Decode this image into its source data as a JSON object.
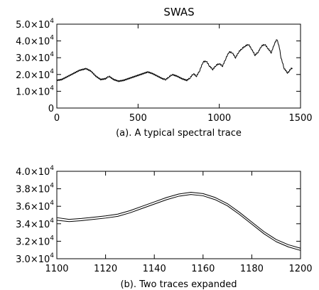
{
  "figure_title": "SWAS",
  "chart_data": [
    {
      "type": "line",
      "title": "SWAS",
      "caption": "(a). A typical spectral trace",
      "xlabel": "",
      "ylabel": "",
      "xlim": [
        0,
        1500
      ],
      "ylim": [
        0,
        50000
      ],
      "x_ticks": [
        0,
        500,
        1000,
        1500
      ],
      "x_tick_labels": [
        "0",
        "500",
        "1000",
        "1500"
      ],
      "y_ticks": [
        0,
        10000,
        20000,
        30000,
        40000,
        50000
      ],
      "y_tick_labels": [
        {
          "mantissa": "0",
          "exponent": ""
        },
        {
          "mantissa": "1.0×10",
          "exponent": "4"
        },
        {
          "mantissa": "2.0×10",
          "exponent": "4"
        },
        {
          "mantissa": "3.0×10",
          "exponent": "4"
        },
        {
          "mantissa": "4.0×10",
          "exponent": "4"
        },
        {
          "mantissa": "5.0×10",
          "exponent": "4"
        }
      ],
      "grid": false,
      "line_color": "#000000",
      "series": [
        {
          "x": [
            0,
            30,
            60,
            100,
            140,
            180,
            210,
            240,
            270,
            300,
            320,
            350,
            380,
            410,
            440,
            470,
            500,
            530,
            560,
            590,
            620,
            650,
            670,
            690,
            710,
            740,
            770,
            800,
            820,
            840,
            860,
            880,
            900,
            920,
            940,
            960,
            980,
            1000,
            1020,
            1040,
            1060,
            1080,
            1100,
            1120,
            1140,
            1160,
            1180,
            1200,
            1220,
            1240,
            1260,
            1280,
            1300,
            1320,
            1340,
            1355,
            1370,
            1380,
            1400,
            1420,
            1430,
            1440,
            1450
          ],
          "y": [
            16500,
            17000,
            18500,
            20500,
            22500,
            23500,
            22000,
            19000,
            17000,
            17500,
            19000,
            17000,
            16000,
            16500,
            17500,
            18500,
            19500,
            20500,
            21500,
            20500,
            19000,
            17500,
            17000,
            18500,
            20000,
            19000,
            17500,
            16500,
            18000,
            20500,
            19000,
            22500,
            27500,
            28000,
            25000,
            23000,
            25500,
            26500,
            25000,
            29500,
            33500,
            33000,
            30000,
            33500,
            35500,
            37000,
            38000,
            35000,
            31500,
            33500,
            37000,
            38000,
            35500,
            33000,
            38500,
            41000,
            36000,
            30000,
            23500,
            21000,
            22000,
            23500,
            23800
          ]
        }
      ]
    },
    {
      "type": "line",
      "title": "",
      "caption": "(b). Two traces expanded",
      "xlabel": "",
      "ylabel": "",
      "xlim": [
        1100,
        1200
      ],
      "ylim": [
        30000,
        40000
      ],
      "x_ticks": [
        1100,
        1120,
        1140,
        1160,
        1180,
        1200
      ],
      "x_tick_labels": [
        "1100",
        "1120",
        "1140",
        "1160",
        "1180",
        "1200"
      ],
      "y_ticks": [
        30000,
        32000,
        34000,
        36000,
        38000,
        40000
      ],
      "y_tick_labels": [
        {
          "mantissa": "3.0×10",
          "exponent": "4"
        },
        {
          "mantissa": "3.2×10",
          "exponent": "4"
        },
        {
          "mantissa": "3.4×10",
          "exponent": "4"
        },
        {
          "mantissa": "3.6×10",
          "exponent": "4"
        },
        {
          "mantissa": "3.8×10",
          "exponent": "4"
        },
        {
          "mantissa": "4.0×10",
          "exponent": "4"
        }
      ],
      "grid": false,
      "line_color": "#000000",
      "series": [
        {
          "x": [
            1100,
            1105,
            1110,
            1115,
            1120,
            1125,
            1130,
            1135,
            1140,
            1145,
            1150,
            1155,
            1160,
            1165,
            1170,
            1175,
            1180,
            1185,
            1190,
            1195,
            1200
          ],
          "y": [
            34700,
            34500,
            34600,
            34750,
            34900,
            35100,
            35500,
            36000,
            36500,
            37000,
            37400,
            37600,
            37450,
            37000,
            36300,
            35300,
            34200,
            33100,
            32200,
            31600,
            31200
          ]
        },
        {
          "x": [
            1100,
            1105,
            1110,
            1115,
            1120,
            1125,
            1130,
            1135,
            1140,
            1145,
            1150,
            1155,
            1160,
            1165,
            1170,
            1175,
            1180,
            1185,
            1190,
            1195,
            1200
          ],
          "y": [
            34400,
            34250,
            34350,
            34500,
            34650,
            34850,
            35250,
            35750,
            36250,
            36750,
            37150,
            37350,
            37200,
            36750,
            36050,
            35050,
            33950,
            32850,
            31950,
            31350,
            30950
          ]
        }
      ]
    }
  ]
}
